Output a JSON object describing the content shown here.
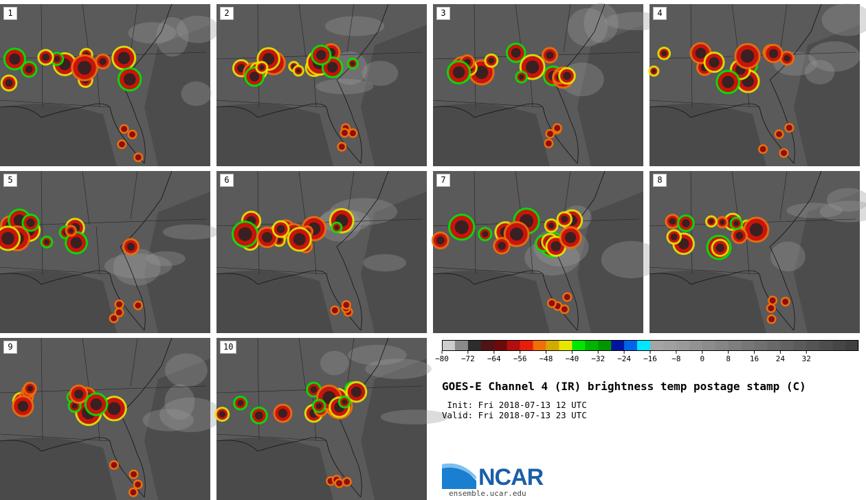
{
  "panels": [
    {
      "label": "1"
    },
    {
      "label": "2"
    },
    {
      "label": "3"
    },
    {
      "label": "4"
    },
    {
      "label": "5"
    },
    {
      "label": "6"
    },
    {
      "label": "7"
    },
    {
      "label": "8"
    },
    {
      "label": "9"
    },
    {
      "label": "10"
    }
  ],
  "colorbar": {
    "tick_labels": [
      "−80",
      "−72",
      "−64",
      "−56",
      "−48",
      "−40",
      "−32",
      "−24",
      "−16",
      "−8",
      "0",
      "8",
      "16",
      "24",
      "32"
    ],
    "colors": [
      "#cdcdcd",
      "#8a8a8a",
      "#2d2d2d",
      "#4f1414",
      "#6e0a0a",
      "#b40f0f",
      "#e61e0a",
      "#f06e0a",
      "#d2aa00",
      "#e6e600",
      "#00e600",
      "#00b400",
      "#009600",
      "#0014a0",
      "#0064e6",
      "#00e6ff",
      "#a5a5a5",
      "#a0a0a0",
      "#9a9a9a",
      "#939393",
      "#8c8c8c",
      "#858585",
      "#7e7e7e",
      "#777777",
      "#707070",
      "#696969",
      "#626262",
      "#5b5b5b",
      "#545454",
      "#4d4d4d",
      "#464646",
      "#3f3f3f"
    ]
  },
  "title": "GOES-E Channel 4 (IR) brightness temp postage stamp (C)",
  "init": " Init: Fri 2018-07-13 12 UTC",
  "valid": "Valid: Fri 2018-07-13 23 UTC",
  "logo": {
    "wordmark": "NCAR",
    "url": "ensemble.ucar.edu"
  }
}
